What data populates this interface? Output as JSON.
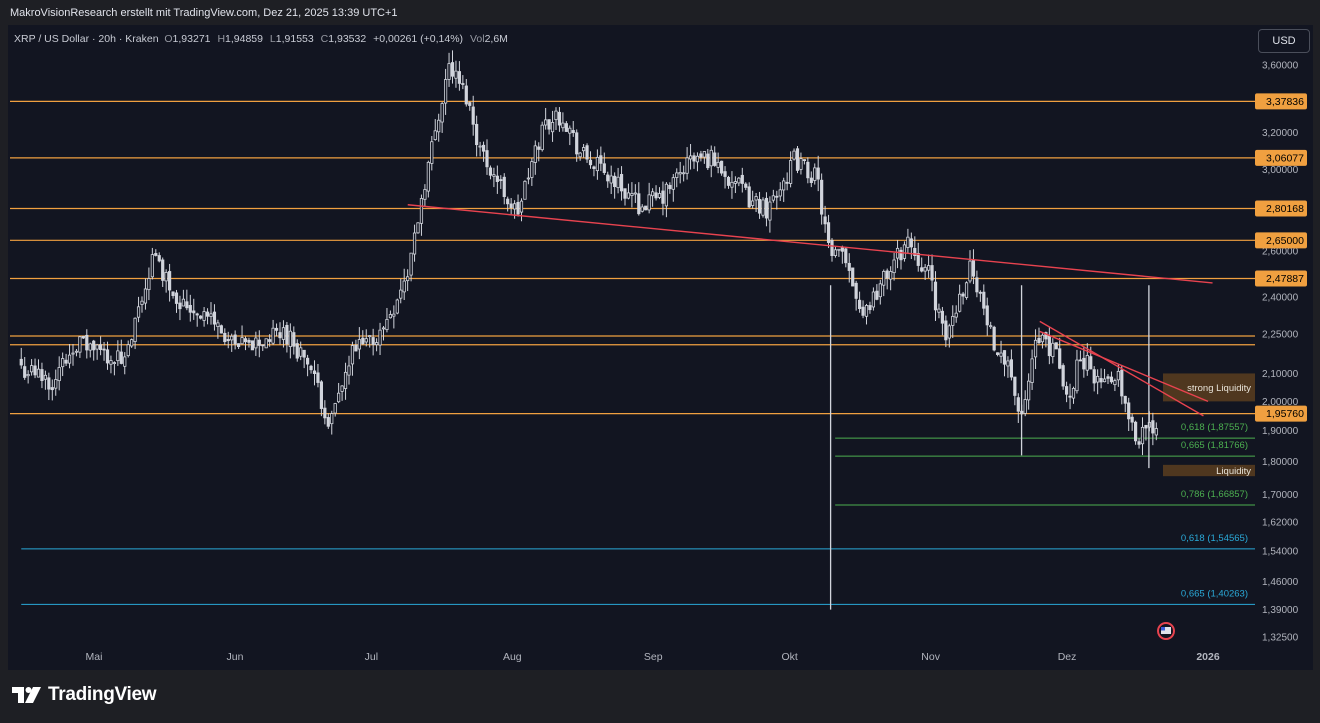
{
  "header": {
    "title": "MakroVisionResearch erstellt mit TradingView.com, Dez 21, 2025 13:39 UTC+1"
  },
  "legend": {
    "symbol": "XRP / US Dollar · 20h · Kraken",
    "o_label": "O",
    "o": "1,93271",
    "h_label": "H",
    "h": "1,94859",
    "l_label": "L",
    "l": "1,91553",
    "c_label": "C",
    "c": "1,93532",
    "change": "+0,00261 (+0,14%)",
    "vol_label": "Vol",
    "vol": "2,6M"
  },
  "currency_button": "USD",
  "footer": {
    "brand": "TradingView"
  },
  "colors": {
    "background": "#121521",
    "candle": "#d1d4dc",
    "orange": "#f0a040",
    "green": "#4caf50",
    "blue": "#2aa9d8",
    "red": "#e8434f"
  },
  "chart_data": {
    "type": "candlestick",
    "symbol": "XRP / US Dollar",
    "interval": "20h",
    "exchange": "Kraken",
    "y_scale": "log",
    "y_axis_ticks": [
      "3,60000",
      "3,20000",
      "3,00000",
      "2,60000",
      "2,40000",
      "2,25000",
      "2,10000",
      "2,00000",
      "1,90000",
      "1,80000",
      "1,70000",
      "1,62000",
      "1,54000",
      "1,46000",
      "1,39000",
      "1,32500"
    ],
    "x_axis_ticks": [
      "Mai",
      "Jun",
      "Jul",
      "Aug",
      "Sep",
      "Okt",
      "Nov",
      "Dez",
      "2026"
    ],
    "price_path": [
      [
        "2025-04-15",
        2.12
      ],
      [
        "2025-04-22",
        2.07
      ],
      [
        "2025-04-27",
        2.22
      ],
      [
        "2025-05-04",
        2.17
      ],
      [
        "2025-05-08",
        2.14
      ],
      [
        "2025-05-14",
        2.58
      ],
      [
        "2025-05-20",
        2.38
      ],
      [
        "2025-05-27",
        2.31
      ],
      [
        "2025-06-01",
        2.19
      ],
      [
        "2025-06-07",
        2.22
      ],
      [
        "2025-06-12",
        2.26
      ],
      [
        "2025-06-17",
        2.14
      ],
      [
        "2025-06-22",
        1.92
      ],
      [
        "2025-06-27",
        2.18
      ],
      [
        "2025-07-03",
        2.25
      ],
      [
        "2025-07-09",
        2.5
      ],
      [
        "2025-07-12",
        2.85
      ],
      [
        "2025-07-18",
        3.6
      ],
      [
        "2025-07-22",
        3.4
      ],
      [
        "2025-07-25",
        3.1
      ],
      [
        "2025-08-02",
        2.77
      ],
      [
        "2025-08-08",
        3.25
      ],
      [
        "2025-08-12",
        3.3
      ],
      [
        "2025-08-16",
        3.08
      ],
      [
        "2025-08-23",
        2.95
      ],
      [
        "2025-08-29",
        2.82
      ],
      [
        "2025-09-03",
        2.85
      ],
      [
        "2025-09-09",
        3.05
      ],
      [
        "2025-09-14",
        3.06
      ],
      [
        "2025-09-22",
        2.85
      ],
      [
        "2025-09-26",
        2.8
      ],
      [
        "2025-10-02",
        3.05
      ],
      [
        "2025-10-07",
        2.95
      ],
      [
        "2025-10-10",
        2.55
      ],
      [
        "2025-10-13",
        2.6
      ],
      [
        "2025-10-17",
        2.33
      ],
      [
        "2025-10-21",
        2.45
      ],
      [
        "2025-10-27",
        2.65
      ],
      [
        "2025-11-01",
        2.48
      ],
      [
        "2025-11-04",
        2.22
      ],
      [
        "2025-11-10",
        2.55
      ],
      [
        "2025-11-14",
        2.25
      ],
      [
        "2025-11-18",
        2.15
      ],
      [
        "2025-11-21",
        1.92
      ],
      [
        "2025-11-24",
        2.22
      ],
      [
        "2025-11-28",
        2.2
      ],
      [
        "2025-12-01",
        2.0
      ],
      [
        "2025-12-04",
        2.17
      ],
      [
        "2025-12-09",
        2.05
      ],
      [
        "2025-12-12",
        2.12
      ],
      [
        "2025-12-16",
        1.88
      ],
      [
        "2025-12-19",
        1.9
      ],
      [
        "2025-12-21",
        1.935
      ]
    ],
    "wicks": [
      {
        "date": "2025-10-10",
        "low": 1.39
      },
      {
        "date": "2025-11-21",
        "low": 1.82
      },
      {
        "date": "2025-12-19",
        "low": 1.78
      }
    ],
    "horizontal_levels": [
      {
        "value": "3,37836",
        "price": 3.37836,
        "color": "orange",
        "label_on_axis": true
      },
      {
        "value": "3,06077",
        "price": 3.06077,
        "color": "orange",
        "label_on_axis": true
      },
      {
        "value": "2,80168",
        "price": 2.80168,
        "color": "orange",
        "label_on_axis": true
      },
      {
        "value": "2,65000",
        "price": 2.65,
        "color": "orange",
        "label_on_axis": true
      },
      {
        "value": "2,47887",
        "price": 2.47887,
        "color": "orange",
        "label_on_axis": true
      },
      {
        "price": 2.242,
        "color": "orange",
        "label_on_axis": false
      },
      {
        "price": 2.208,
        "color": "orange",
        "label_on_axis": false
      },
      {
        "value": "1,95760",
        "price": 1.9576,
        "color": "orange",
        "label_on_axis": true
      }
    ],
    "fibonacci": [
      {
        "label": "0,618 (1,87557)",
        "price": 1.87557,
        "color": "green",
        "start": "2025-10-11"
      },
      {
        "label": "0,665 (1,81766)",
        "price": 1.81766,
        "color": "green",
        "start": "2025-10-11"
      },
      {
        "label": "0,786 (1,66857)",
        "price": 1.66857,
        "color": "green",
        "start": "2025-10-11"
      },
      {
        "label": "0,618 (1,54565)",
        "price": 1.54565,
        "color": "blue",
        "start": "2025-04-15"
      },
      {
        "label": "0,665 (1,40263)",
        "price": 1.40263,
        "color": "blue",
        "start": "2025-04-15"
      }
    ],
    "zones": [
      {
        "label": "strong Liquidity",
        "top": 2.1,
        "bottom": 2.0
      },
      {
        "label": "Liquidity",
        "top": 1.79,
        "bottom": 1.755
      }
    ],
    "trendlines": [
      {
        "from": [
          "2025-07-09",
          2.82
        ],
        "to": [
          "2026-01-02",
          2.46
        ],
        "color": "red"
      },
      {
        "from": [
          "2025-11-25",
          2.3
        ],
        "to": [
          "2025-12-31",
          1.95
        ],
        "color": "red"
      },
      {
        "from": [
          "2025-11-25",
          2.26
        ],
        "to": [
          "2026-01-01",
          2.0
        ],
        "color": "red"
      }
    ],
    "grid": false,
    "legend": "top-left"
  }
}
